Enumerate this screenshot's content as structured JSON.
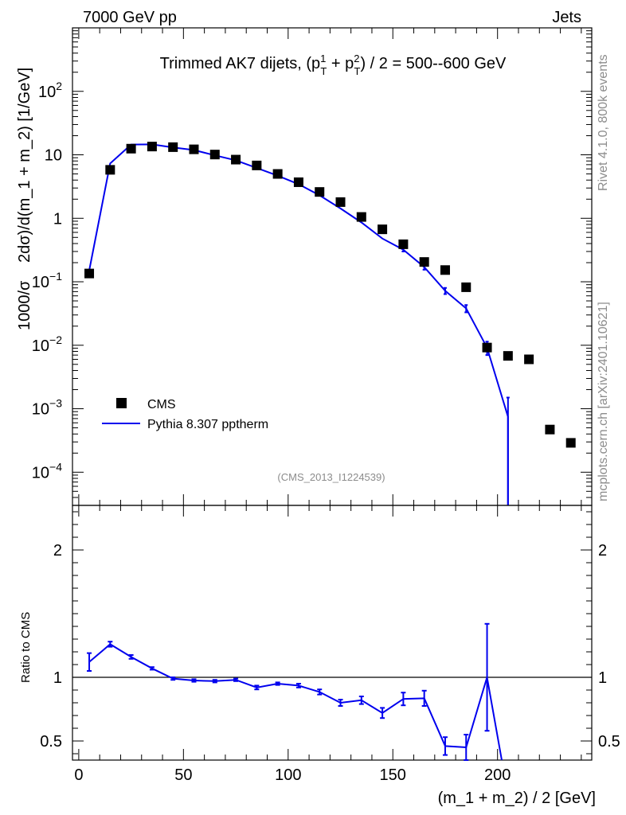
{
  "header": {
    "left": "7000 GeV pp",
    "right": "Jets"
  },
  "side_labels": {
    "rivet": "Rivet 4.1.0,  800k events",
    "mcplots": "mcplots.cern.ch [arXiv:2401.10621]"
  },
  "colors": {
    "mc": "#0000ee",
    "data": "#000000",
    "frame": "#000000",
    "side_text": "#8c8c8c"
  },
  "chart_data": [
    {
      "id": "main",
      "type": "scatter",
      "title": "Trimmed AK7 dijets, (p_T^1 + p_T^2) / 2 = 500--600 GeV",
      "title_parts": {
        "pre": "Trimmed AK7 dijets, (p",
        "sup1": "1",
        "sub": "T",
        "mid": " + p",
        "sup2": "2",
        "post": ") / 2 = 500--600 GeV"
      },
      "ylabel": "1000/σ   2dσ)/d(m_1 + m_2) [1/GeV]",
      "ylabel_parts": {
        "a": "1000/σ",
        "b": "2dσ)/d(m_1 + m_2) [1/GeV]"
      },
      "yscale": "log",
      "ylim": [
        3e-05,
        1000
      ],
      "xlim": [
        -3,
        245
      ],
      "y_ticks": [
        {
          "v": 0.0001,
          "mant": "10",
          "exp": "−4"
        },
        {
          "v": 0.001,
          "mant": "10",
          "exp": "−3"
        },
        {
          "v": 0.01,
          "mant": "10",
          "exp": "−2"
        },
        {
          "v": 0.1,
          "mant": "10",
          "exp": "−1"
        },
        {
          "v": 1,
          "mant": "1",
          "exp": ""
        },
        {
          "v": 10,
          "mant": "10",
          "exp": ""
        },
        {
          "v": 100,
          "mant": "10",
          "exp": "2"
        }
      ],
      "legend_position": "lower-left",
      "annotation": "(CMS_2013_I1224539)",
      "series": [
        {
          "name": "CMS",
          "kind": "markers",
          "x": [
            5,
            15,
            25,
            35,
            45,
            55,
            65,
            75,
            85,
            95,
            105,
            115,
            125,
            135,
            145,
            155,
            165,
            175,
            185,
            195,
            205,
            215,
            225,
            235
          ],
          "y": [
            0.135,
            5.8,
            12.5,
            13.5,
            13.2,
            12.2,
            10.1,
            8.4,
            6.8,
            5.0,
            3.7,
            2.6,
            1.8,
            1.05,
            0.67,
            0.39,
            0.205,
            0.153,
            0.082,
            0.0092,
            0.0068,
            0.006,
            0.00047,
            0.00029
          ]
        },
        {
          "name": "Pythia 8.307 pptherm",
          "kind": "line",
          "x": [
            5,
            15,
            25,
            35,
            45,
            55,
            65,
            75,
            85,
            95,
            105,
            115,
            125,
            135,
            145,
            155,
            165,
            175,
            185,
            195,
            205
          ],
          "y": [
            0.15,
            7.3,
            14.5,
            14.6,
            13.1,
            11.9,
            9.8,
            8.2,
            6.2,
            4.7,
            3.45,
            2.3,
            1.43,
            0.86,
            0.48,
            0.32,
            0.17,
            0.072,
            0.038,
            0.0092,
            0.00075
          ],
          "err_lo": [
            0.0,
            0.0,
            0.0,
            0.0,
            0.0,
            0.0,
            0.0,
            0.0,
            0.0,
            0.0,
            0.0,
            0.0,
            0.0,
            0.0,
            0.0,
            0.02,
            0.015,
            0.008,
            0.005,
            0.0022,
            0.00074
          ],
          "err_hi": [
            0.0,
            0.0,
            0.0,
            0.0,
            0.0,
            0.0,
            0.0,
            0.0,
            0.0,
            0.0,
            0.0,
            0.0,
            0.0,
            0.0,
            0.0,
            0.02,
            0.015,
            0.008,
            0.005,
            0.0022,
            0.00075
          ]
        }
      ]
    },
    {
      "id": "ratio",
      "type": "line",
      "ylabel": "Ratio to CMS",
      "xlabel": "(m_1 + m_2) / 2 [GeV]",
      "ylim": [
        0.35,
        2.35
      ],
      "xlim": [
        -3,
        245
      ],
      "x_ticks": [
        0,
        50,
        100,
        150,
        200
      ],
      "y_ticks": [
        {
          "v": 0.5,
          "label": "0.5"
        },
        {
          "v": 1,
          "label": "1"
        },
        {
          "v": 2,
          "label": "2"
        }
      ],
      "reference_line": 1,
      "series": [
        {
          "name": "Pythia 8.307 pptherm / CMS",
          "x": [
            5,
            15,
            25,
            35,
            45,
            55,
            65,
            75,
            85,
            95,
            105,
            115,
            125,
            135,
            145,
            155,
            165,
            175,
            185,
            195,
            202
          ],
          "y": [
            1.12,
            1.26,
            1.16,
            1.07,
            0.99,
            0.975,
            0.97,
            0.98,
            0.92,
            0.95,
            0.935,
            0.885,
            0.8,
            0.82,
            0.72,
            0.83,
            0.835,
            0.46,
            0.45,
            1.0,
            0.3
          ],
          "err": [
            0.07,
            0.02,
            0.015,
            0.01,
            0.01,
            0.01,
            0.01,
            0.01,
            0.015,
            0.01,
            0.015,
            0.02,
            0.025,
            0.03,
            0.04,
            0.05,
            0.06,
            0.07,
            0.1,
            0.42,
            0.0
          ]
        }
      ]
    }
  ]
}
